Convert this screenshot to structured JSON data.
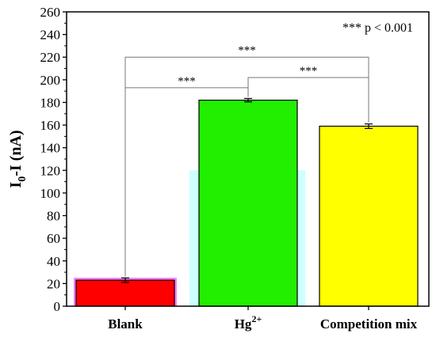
{
  "chart_data": {
    "type": "bar",
    "title": "",
    "xlabel": "",
    "ylabel": "I0-I (nA)",
    "ylabel_parts": {
      "main": "I",
      "sub": "0",
      "rest": "-I (nA)"
    },
    "ylim": [
      0,
      260
    ],
    "yticks": [
      0,
      20,
      40,
      60,
      80,
      100,
      120,
      140,
      160,
      180,
      200,
      220,
      240,
      260
    ],
    "grid": false,
    "categories": [
      {
        "label": "Blank",
        "sup": ""
      },
      {
        "label": "Hg",
        "sup": "2+"
      },
      {
        "label": "Competition mix",
        "sup": ""
      }
    ],
    "values": [
      23,
      182,
      159
    ],
    "errors": [
      2,
      1.5,
      2
    ],
    "colors": [
      "#ff0000",
      "#22ee00",
      "#ffff00"
    ],
    "shadow_colors": [
      "#ff66ff",
      "#c8ffff",
      null
    ],
    "annotations": {
      "pvalue": "*** p < 0.001",
      "comparisons": [
        {
          "from": 0,
          "to": 2,
          "level": 220,
          "label": "***"
        },
        {
          "from": 0,
          "to": 1,
          "level": 193,
          "label": "***"
        },
        {
          "from": 1,
          "to": 2,
          "level": 202,
          "label": "***"
        }
      ]
    }
  }
}
